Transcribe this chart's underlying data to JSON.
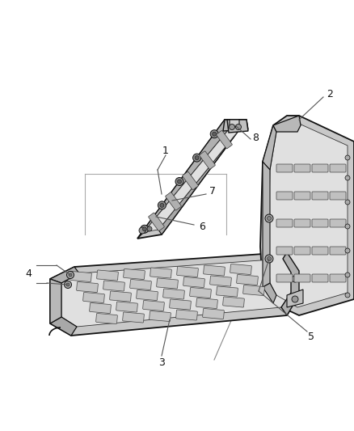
{
  "bg_color": "#ffffff",
  "fig_width": 4.38,
  "fig_height": 5.33,
  "dpi": 100,
  "lc": "#333333",
  "dc": "#111111"
}
